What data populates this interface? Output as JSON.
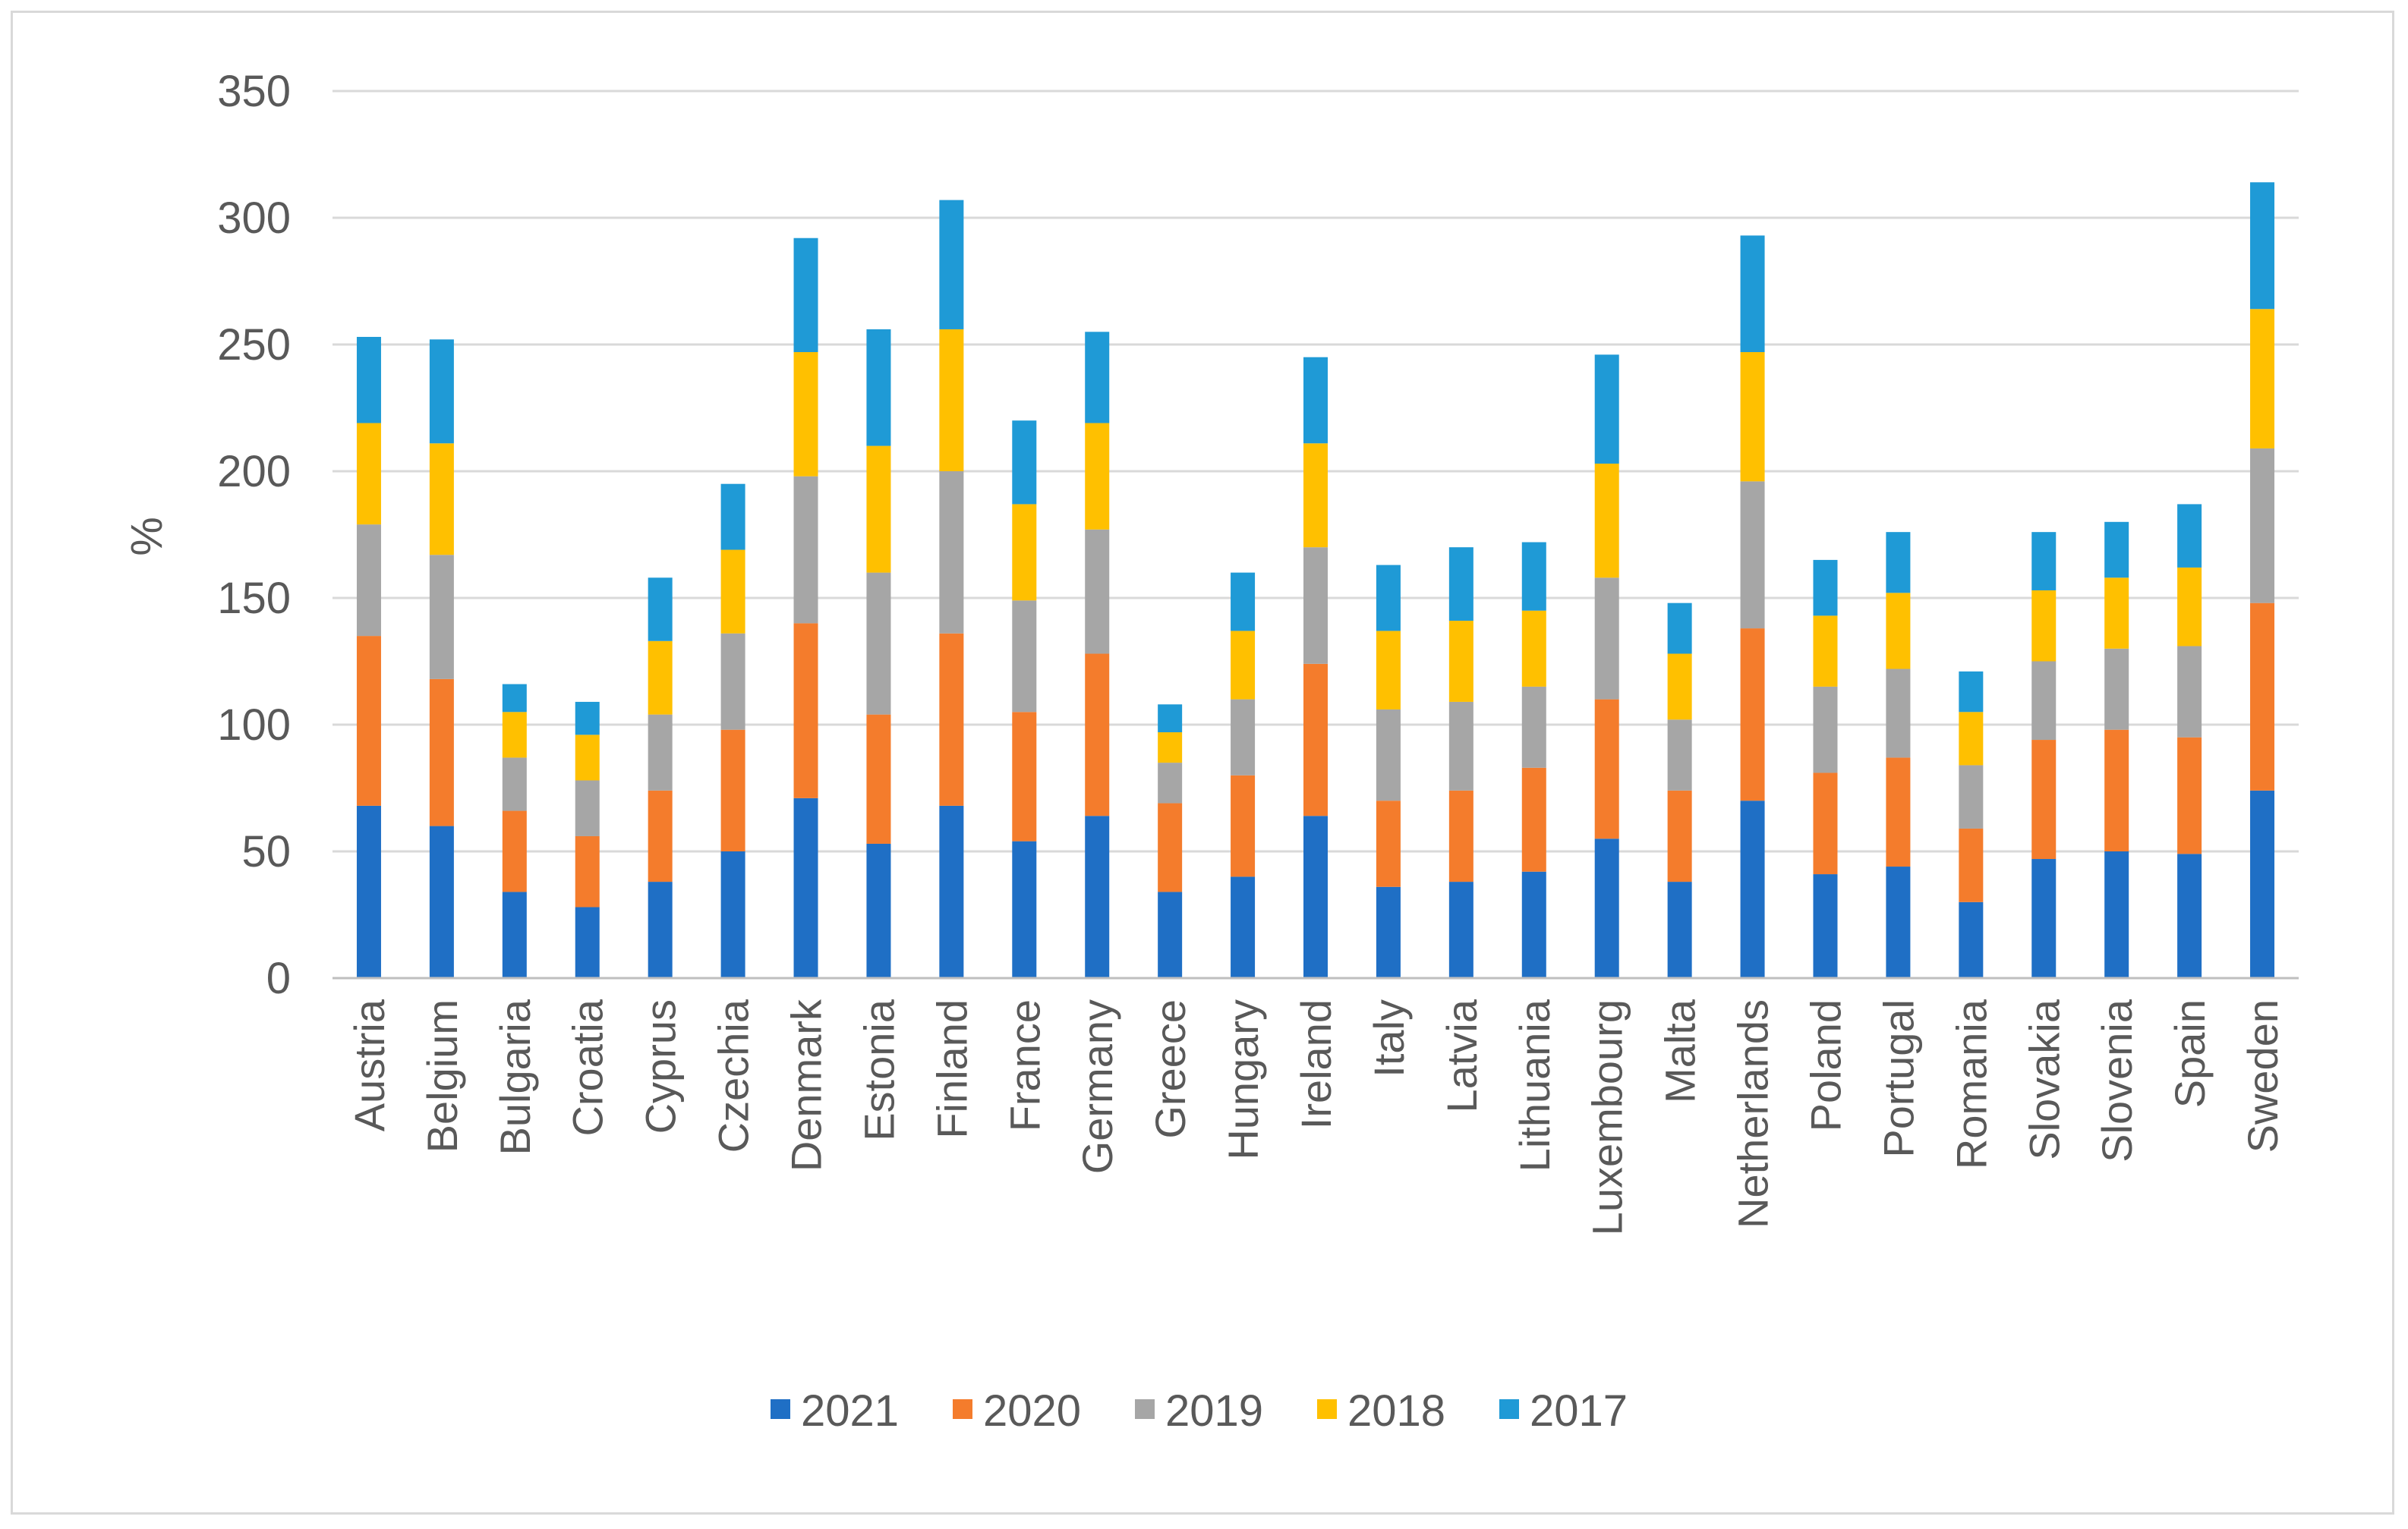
{
  "chart_data": {
    "type": "bar",
    "stacked": true,
    "title": "",
    "xlabel": "",
    "ylabel": "%",
    "ylim": [
      0,
      350
    ],
    "yticks": [
      0,
      50,
      100,
      150,
      200,
      250,
      300,
      350
    ],
    "grid": true,
    "legend_position": "bottom",
    "categories": [
      "Austria",
      "Belgium",
      "Bulgaria",
      "Croatia",
      "Cyprus",
      "Czechia",
      "Denmark",
      "Estonia",
      "Finland",
      "France",
      "Germany",
      "Greece",
      "Hungary",
      "Ireland",
      "Italy",
      "Latvia",
      "Lithuania",
      "Luxembourg",
      "Malta",
      "Netherlands",
      "Poland",
      "Portugal",
      "Romania",
      "Slovakia",
      "Slovenia",
      "Spain",
      "Sweden"
    ],
    "series": [
      {
        "name": "2021",
        "color": "#1f6fc5",
        "values": [
          68,
          60,
          34,
          28,
          38,
          50,
          71,
          53,
          68,
          54,
          64,
          34,
          40,
          64,
          36,
          38,
          42,
          55,
          38,
          70,
          41,
          44,
          30,
          47,
          50,
          49,
          74
        ]
      },
      {
        "name": "2020",
        "color": "#f47c2c",
        "values": [
          67,
          58,
          32,
          28,
          36,
          48,
          69,
          51,
          68,
          51,
          64,
          35,
          40,
          60,
          34,
          36,
          41,
          55,
          36,
          68,
          40,
          43,
          29,
          47,
          48,
          46,
          74
        ]
      },
      {
        "name": "2019",
        "color": "#a6a6a6",
        "values": [
          44,
          49,
          21,
          22,
          30,
          38,
          58,
          56,
          64,
          44,
          49,
          16,
          30,
          46,
          36,
          35,
          32,
          48,
          28,
          58,
          34,
          35,
          25,
          31,
          32,
          36,
          61
        ]
      },
      {
        "name": "2018",
        "color": "#ffc000",
        "values": [
          40,
          44,
          18,
          18,
          29,
          33,
          49,
          50,
          56,
          38,
          42,
          12,
          27,
          41,
          31,
          32,
          30,
          45,
          26,
          51,
          28,
          30,
          21,
          28,
          28,
          31,
          55
        ]
      },
      {
        "name": "2017",
        "color": "#1f9ad6",
        "values": [
          34,
          41,
          11,
          13,
          25,
          26,
          45,
          46,
          51,
          33,
          36,
          11,
          23,
          34,
          26,
          29,
          27,
          43,
          20,
          46,
          22,
          24,
          16,
          23,
          22,
          25,
          50
        ]
      }
    ]
  }
}
